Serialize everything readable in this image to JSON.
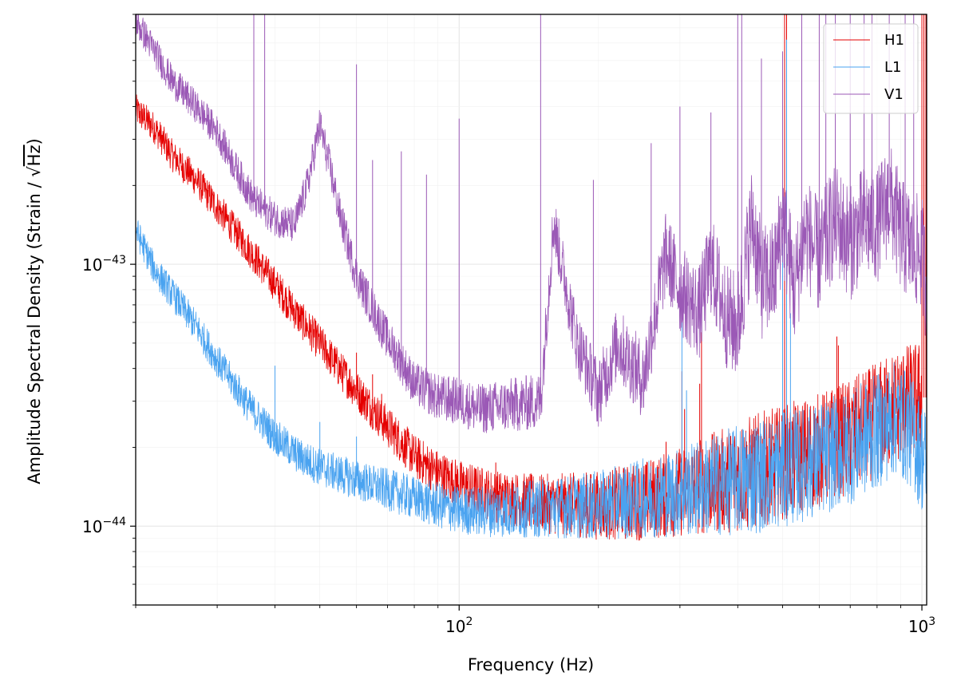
{
  "chart_data": {
    "type": "line",
    "xlabel": "Frequency (Hz)",
    "ylabel_prefix": "Amplitude Spectral Density (Strain / ",
    "ylabel_sqrt": "√",
    "ylabel_unit": "Hz",
    "ylabel_suffix": ")",
    "x_scale": "log",
    "y_scale": "log",
    "xlim": [
      20,
      1024
    ],
    "ylim": [
      5e-45,
      9e-43
    ],
    "x_ticks": [
      {
        "value": 100,
        "base": "10",
        "exp": "2"
      },
      {
        "value": 1000,
        "base": "10",
        "exp": "3"
      }
    ],
    "y_ticks": [
      {
        "value": 1e-44,
        "base": "10",
        "exp": "−44"
      },
      {
        "value": 1e-43,
        "base": "10",
        "exp": "−43"
      }
    ],
    "grid": true,
    "legend_position": "top-right",
    "series": [
      {
        "name": "H1",
        "color": "#e50000",
        "x": [
          20,
          22,
          24,
          27,
          30,
          35,
          40,
          45,
          50,
          55,
          60,
          70,
          80,
          90,
          100,
          120,
          150,
          200,
          250,
          300,
          400,
          500,
          600,
          700,
          800,
          900,
          1000
        ],
        "y": [
          3.9e-43,
          3.3e-43,
          2.6e-43,
          2.1e-43,
          1.65e-43,
          1.15e-43,
          8.4e-44,
          6.3e-44,
          5e-44,
          4e-44,
          3.3e-44,
          2.4e-44,
          1.85e-44,
          1.6e-44,
          1.45e-44,
          1.3e-44,
          1.22e-44,
          1.2e-44,
          1.25e-44,
          1.35e-44,
          1.55e-44,
          1.75e-44,
          1.95e-44,
          2.2e-44,
          2.55e-44,
          2.95e-44,
          3.1e-44
        ],
        "lines": [
          {
            "x": 37,
            "y": 1.05e-43
          },
          {
            "x": 60,
            "y": 4.6e-44
          },
          {
            "x": 65,
            "y": 3.8e-44
          },
          {
            "x": 68,
            "y": 3.2e-44
          },
          {
            "x": 120,
            "y": 1.75e-44
          },
          {
            "x": 250,
            "y": 1.5e-44
          },
          {
            "x": 280,
            "y": 2.1e-44
          },
          {
            "x": 303,
            "y": 3.9e-44
          },
          {
            "x": 307,
            "y": 2.8e-44
          },
          {
            "x": 331,
            "y": 3.5e-44
          },
          {
            "x": 334,
            "y": 5.5e-44
          },
          {
            "x": 505,
            "y": 9e-43
          },
          {
            "x": 510,
            "y": 9e-43
          },
          {
            "x": 655,
            "y": 5.3e-44
          },
          {
            "x": 660,
            "y": 4.9e-44
          },
          {
            "x": 1000,
            "y": 9e-43
          },
          {
            "x": 1010,
            "y": 9e-43
          },
          {
            "x": 1020,
            "y": 9e-43
          }
        ]
      },
      {
        "name": "L1",
        "color": "#4aa3f0",
        "x": [
          20,
          22,
          24,
          27,
          30,
          35,
          40,
          45,
          50,
          60,
          70,
          80,
          90,
          100,
          120,
          150,
          200,
          250,
          300,
          400,
          500,
          600,
          700,
          800,
          880,
          950,
          1024
        ],
        "y": [
          1.35e-43,
          9.5e-44,
          7.7e-44,
          5.8e-44,
          4.3e-44,
          2.9e-44,
          2.2e-44,
          1.85e-44,
          1.68e-44,
          1.5e-44,
          1.38e-44,
          1.28e-44,
          1.2e-44,
          1.15e-44,
          1.14e-44,
          1.17e-44,
          1.2e-44,
          1.28e-44,
          1.35e-44,
          1.5e-44,
          1.63e-44,
          1.8e-44,
          2e-44,
          2.3e-44,
          2.6e-44,
          2.3e-44,
          1.7e-44
        ],
        "lines": [
          {
            "x": 40,
            "y": 4.1e-44
          },
          {
            "x": 50,
            "y": 2.5e-44
          },
          {
            "x": 60,
            "y": 2.2e-44
          },
          {
            "x": 303,
            "y": 6.8e-44
          },
          {
            "x": 310,
            "y": 3.3e-44
          },
          {
            "x": 500,
            "y": 1.2e-43
          },
          {
            "x": 510,
            "y": 7.2e-43
          },
          {
            "x": 520,
            "y": 6.5e-44
          }
        ]
      },
      {
        "name": "V1",
        "color": "#9b59b6",
        "x": [
          20,
          22,
          24,
          27,
          30,
          33,
          36,
          40,
          44,
          47,
          50,
          53,
          55,
          60,
          70,
          80,
          90,
          100,
          110,
          130,
          150,
          160,
          180,
          200,
          220,
          250,
          280,
          300,
          330,
          350,
          380,
          400,
          430,
          450,
          480,
          500,
          530,
          560,
          600,
          650,
          700,
          750,
          800,
          850,
          900,
          950,
          1000,
          1024
        ],
        "y": [
          8.5e-43,
          6.5e-43,
          5e-43,
          4e-43,
          3.2e-43,
          2.3e-43,
          1.75e-43,
          1.5e-43,
          1.4e-43,
          2e-43,
          3.4e-43,
          2.2e-43,
          1.6e-43,
          9e-44,
          5.2e-44,
          3.5e-44,
          3.1e-44,
          3e-44,
          2.8e-44,
          2.9e-44,
          3e-44,
          1.45e-43,
          5e-44,
          3.2e-44,
          5e-44,
          3.6e-44,
          1.1e-43,
          8e-44,
          6.5e-44,
          1e-43,
          6.2e-44,
          5.8e-44,
          1.5e-43,
          8.5e-44,
          9e-44,
          1.5e-43,
          8e-44,
          1.35e-43,
          1.05e-43,
          1.5e-43,
          1.2e-43,
          1.45e-43,
          1.4e-43,
          1.8e-43,
          1.3e-43,
          1.15e-43,
          1.1e-43,
          8e-44
        ],
        "lines": [
          {
            "x": 36,
            "y": 9e-43
          },
          {
            "x": 38,
            "y": 9e-43
          },
          {
            "x": 60,
            "y": 5.8e-43
          },
          {
            "x": 65,
            "y": 2.5e-43
          },
          {
            "x": 75,
            "y": 2.7e-43
          },
          {
            "x": 85,
            "y": 2.2e-43
          },
          {
            "x": 100,
            "y": 3.6e-43
          },
          {
            "x": 150,
            "y": 9e-43
          },
          {
            "x": 195,
            "y": 2.1e-43
          },
          {
            "x": 260,
            "y": 2.9e-43
          },
          {
            "x": 300,
            "y": 4e-43
          },
          {
            "x": 350,
            "y": 3.8e-43
          },
          {
            "x": 400,
            "y": 9e-43
          },
          {
            "x": 408,
            "y": 9e-43
          },
          {
            "x": 450,
            "y": 6.1e-43
          },
          {
            "x": 500,
            "y": 6.5e-43
          },
          {
            "x": 550,
            "y": 9e-43
          },
          {
            "x": 600,
            "y": 9e-43
          },
          {
            "x": 620,
            "y": 9e-43
          },
          {
            "x": 650,
            "y": 9e-43
          },
          {
            "x": 700,
            "y": 9e-43
          },
          {
            "x": 750,
            "y": 9e-43
          },
          {
            "x": 780,
            "y": 9e-43
          },
          {
            "x": 850,
            "y": 9e-43
          },
          {
            "x": 920,
            "y": 9e-43
          },
          {
            "x": 960,
            "y": 9e-43
          }
        ]
      }
    ]
  }
}
